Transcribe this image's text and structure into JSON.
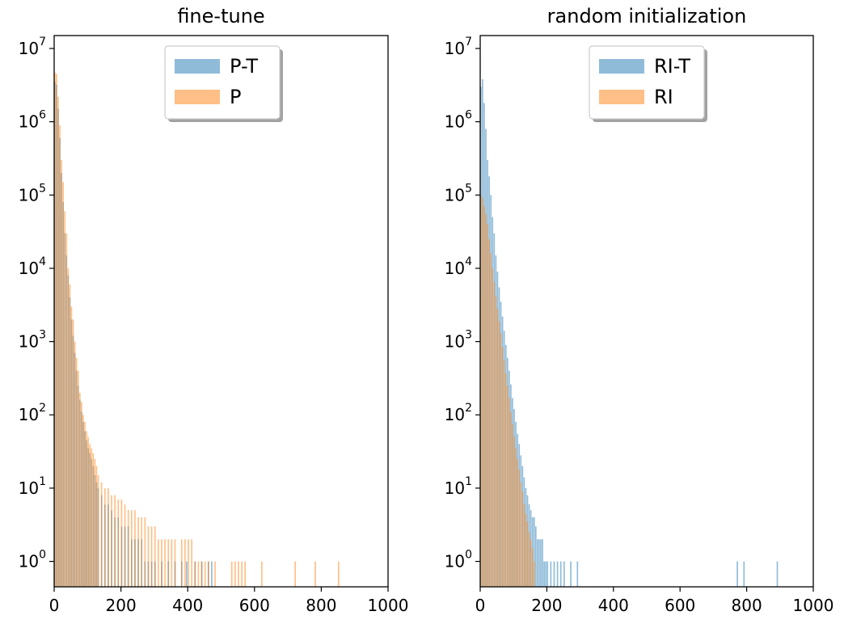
{
  "chart_data": [
    {
      "type": "histogram",
      "title": "fine-tune",
      "xlabel": "",
      "ylabel": "",
      "xlim": [
        0,
        1000
      ],
      "ylim": [
        0.45,
        15000000
      ],
      "yscale": "log",
      "grid": false,
      "legend_position": "top-center",
      "x_ticks": [
        "0",
        "200",
        "400",
        "600",
        "800",
        "1000"
      ],
      "y_ticks": [
        {
          "base": "10",
          "exp": "0",
          "value": 1
        },
        {
          "base": "10",
          "exp": "1",
          "value": 10
        },
        {
          "base": "10",
          "exp": "2",
          "value": 100
        },
        {
          "base": "10",
          "exp": "3",
          "value": 1000
        },
        {
          "base": "10",
          "exp": "4",
          "value": 10000
        },
        {
          "base": "10",
          "exp": "5",
          "value": 100000
        },
        {
          "base": "10",
          "exp": "6",
          "value": 1000000
        },
        {
          "base": "10",
          "exp": "7",
          "value": 10000000
        }
      ],
      "series": [
        {
          "name": "P-T",
          "color": "#1f77b4",
          "opacity": 0.5,
          "values": [
            [
              0,
              3500000
            ],
            [
              5,
              3200000
            ],
            [
              10,
              1500000
            ],
            [
              15,
              600000
            ],
            [
              20,
              200000
            ],
            [
              25,
              80000
            ],
            [
              30,
              30000
            ],
            [
              35,
              15000
            ],
            [
              40,
              8000
            ],
            [
              45,
              4000
            ],
            [
              50,
              2000
            ],
            [
              55,
              1200
            ],
            [
              60,
              700
            ],
            [
              65,
              400
            ],
            [
              70,
              250
            ],
            [
              75,
              160
            ],
            [
              80,
              110
            ],
            [
              85,
              80
            ],
            [
              90,
              60
            ],
            [
              95,
              45
            ],
            [
              100,
              35
            ],
            [
              105,
              30
            ],
            [
              110,
              25
            ],
            [
              115,
              20
            ],
            [
              120,
              15
            ],
            [
              125,
              12
            ],
            [
              130,
              10
            ],
            [
              140,
              8
            ],
            [
              150,
              6
            ],
            [
              160,
              6
            ],
            [
              170,
              5
            ],
            [
              180,
              4
            ],
            [
              190,
              4
            ],
            [
              200,
              3
            ],
            [
              210,
              3
            ],
            [
              220,
              3
            ],
            [
              230,
              2
            ],
            [
              240,
              2
            ],
            [
              250,
              2
            ],
            [
              260,
              2
            ],
            [
              270,
              1
            ],
            [
              280,
              1
            ],
            [
              290,
              1
            ],
            [
              300,
              1
            ],
            [
              320,
              1
            ],
            [
              340,
              1
            ],
            [
              360,
              1
            ],
            [
              380,
              1
            ],
            [
              395,
              1
            ],
            [
              420,
              1
            ],
            [
              440,
              1
            ],
            [
              460,
              1
            ],
            [
              470,
              1
            ]
          ]
        },
        {
          "name": "P",
          "color": "#ff7f0e",
          "opacity": 0.5,
          "values": [
            [
              0,
              4700000
            ],
            [
              5,
              4500000
            ],
            [
              10,
              2200000
            ],
            [
              15,
              900000
            ],
            [
              20,
              300000
            ],
            [
              25,
              150000
            ],
            [
              30,
              60000
            ],
            [
              35,
              30000
            ],
            [
              40,
              10000
            ],
            [
              45,
              6000
            ],
            [
              50,
              3000
            ],
            [
              55,
              2000
            ],
            [
              60,
              1000
            ],
            [
              65,
              600
            ],
            [
              70,
              400
            ],
            [
              75,
              200
            ],
            [
              80,
              150
            ],
            [
              85,
              100
            ],
            [
              90,
              80
            ],
            [
              95,
              60
            ],
            [
              100,
              50
            ],
            [
              105,
              40
            ],
            [
              110,
              35
            ],
            [
              115,
              30
            ],
            [
              120,
              25
            ],
            [
              125,
              20
            ],
            [
              130,
              15
            ],
            [
              140,
              12
            ],
            [
              150,
              10
            ],
            [
              160,
              10
            ],
            [
              170,
              8
            ],
            [
              180,
              8
            ],
            [
              190,
              7
            ],
            [
              200,
              7
            ],
            [
              210,
              6
            ],
            [
              220,
              5
            ],
            [
              230,
              5
            ],
            [
              240,
              5
            ],
            [
              250,
              4
            ],
            [
              260,
              4
            ],
            [
              270,
              4
            ],
            [
              280,
              3
            ],
            [
              290,
              3
            ],
            [
              300,
              3
            ],
            [
              310,
              2
            ],
            [
              320,
              2
            ],
            [
              330,
              2
            ],
            [
              340,
              2
            ],
            [
              350,
              2
            ],
            [
              360,
              2
            ],
            [
              380,
              2
            ],
            [
              390,
              2
            ],
            [
              400,
              2
            ],
            [
              410,
              2
            ],
            [
              420,
              1
            ],
            [
              430,
              1
            ],
            [
              440,
              1
            ],
            [
              450,
              1
            ],
            [
              460,
              1
            ],
            [
              480,
              1
            ],
            [
              530,
              1
            ],
            [
              540,
              1
            ],
            [
              550,
              1
            ],
            [
              560,
              1
            ],
            [
              570,
              1
            ],
            [
              620,
              1
            ],
            [
              720,
              1
            ],
            [
              780,
              1
            ],
            [
              850,
              1
            ]
          ]
        }
      ]
    },
    {
      "type": "histogram",
      "title": "random initialization",
      "xlabel": "",
      "ylabel": "",
      "xlim": [
        0,
        1000
      ],
      "ylim": [
        0.45,
        15000000
      ],
      "yscale": "log",
      "grid": false,
      "legend_position": "top-center",
      "x_ticks": [
        "0",
        "200",
        "400",
        "600",
        "800",
        "1000"
      ],
      "y_ticks": [
        {
          "base": "10",
          "exp": "0",
          "value": 1
        },
        {
          "base": "10",
          "exp": "1",
          "value": 10
        },
        {
          "base": "10",
          "exp": "2",
          "value": 100
        },
        {
          "base": "10",
          "exp": "3",
          "value": 1000
        },
        {
          "base": "10",
          "exp": "4",
          "value": 10000
        },
        {
          "base": "10",
          "exp": "5",
          "value": 100000
        },
        {
          "base": "10",
          "exp": "6",
          "value": 1000000
        },
        {
          "base": "10",
          "exp": "7",
          "value": 10000000
        }
      ],
      "series": [
        {
          "name": "RI-T",
          "color": "#1f77b4",
          "opacity": 0.5,
          "values": [
            [
              0,
              3000000
            ],
            [
              5,
              3800000
            ],
            [
              10,
              1800000
            ],
            [
              15,
              800000
            ],
            [
              20,
              300000
            ],
            [
              25,
              180000
            ],
            [
              30,
              100000
            ],
            [
              35,
              50000
            ],
            [
              40,
              30000
            ],
            [
              45,
              15000
            ],
            [
              50,
              9000
            ],
            [
              55,
              5500
            ],
            [
              60,
              3500
            ],
            [
              65,
              2200
            ],
            [
              70,
              1400
            ],
            [
              75,
              900
            ],
            [
              80,
              600
            ],
            [
              85,
              400
            ],
            [
              90,
              260
            ],
            [
              95,
              170
            ],
            [
              100,
              120
            ],
            [
              105,
              80
            ],
            [
              110,
              55
            ],
            [
              115,
              40
            ],
            [
              120,
              28
            ],
            [
              125,
              20
            ],
            [
              130,
              14
            ],
            [
              135,
              10
            ],
            [
              140,
              8
            ],
            [
              145,
              6
            ],
            [
              150,
              5
            ],
            [
              155,
              4
            ],
            [
              160,
              4
            ],
            [
              165,
              3
            ],
            [
              170,
              2
            ],
            [
              175,
              2
            ],
            [
              180,
              2
            ],
            [
              185,
              2
            ],
            [
              190,
              1
            ],
            [
              195,
              1
            ],
            [
              200,
              1
            ],
            [
              210,
              1
            ],
            [
              220,
              1
            ],
            [
              230,
              1
            ],
            [
              240,
              1
            ],
            [
              250,
              1
            ],
            [
              270,
              1
            ],
            [
              290,
              1
            ],
            [
              770,
              1
            ],
            [
              790,
              1
            ],
            [
              890,
              1
            ]
          ]
        },
        {
          "name": "RI",
          "color": "#ff7f0e",
          "opacity": 0.5,
          "values": [
            [
              0,
              100000
            ],
            [
              5,
              90000
            ],
            [
              10,
              70000
            ],
            [
              15,
              55000
            ],
            [
              20,
              40000
            ],
            [
              25,
              25000
            ],
            [
              30,
              16000
            ],
            [
              35,
              10000
            ],
            [
              40,
              6500
            ],
            [
              45,
              4200
            ],
            [
              50,
              2800
            ],
            [
              55,
              1900
            ],
            [
              60,
              1300
            ],
            [
              65,
              850
            ],
            [
              70,
              560
            ],
            [
              75,
              370
            ],
            [
              80,
              250
            ],
            [
              85,
              170
            ],
            [
              90,
              110
            ],
            [
              95,
              75
            ],
            [
              100,
              50
            ],
            [
              105,
              35
            ],
            [
              110,
              25
            ],
            [
              115,
              18
            ],
            [
              120,
              12
            ],
            [
              125,
              9
            ],
            [
              130,
              6
            ],
            [
              135,
              4.5
            ],
            [
              140,
              3.5
            ],
            [
              145,
              2.5
            ],
            [
              150,
              2
            ],
            [
              155,
              1.5
            ],
            [
              160,
              1
            ]
          ]
        }
      ]
    }
  ]
}
